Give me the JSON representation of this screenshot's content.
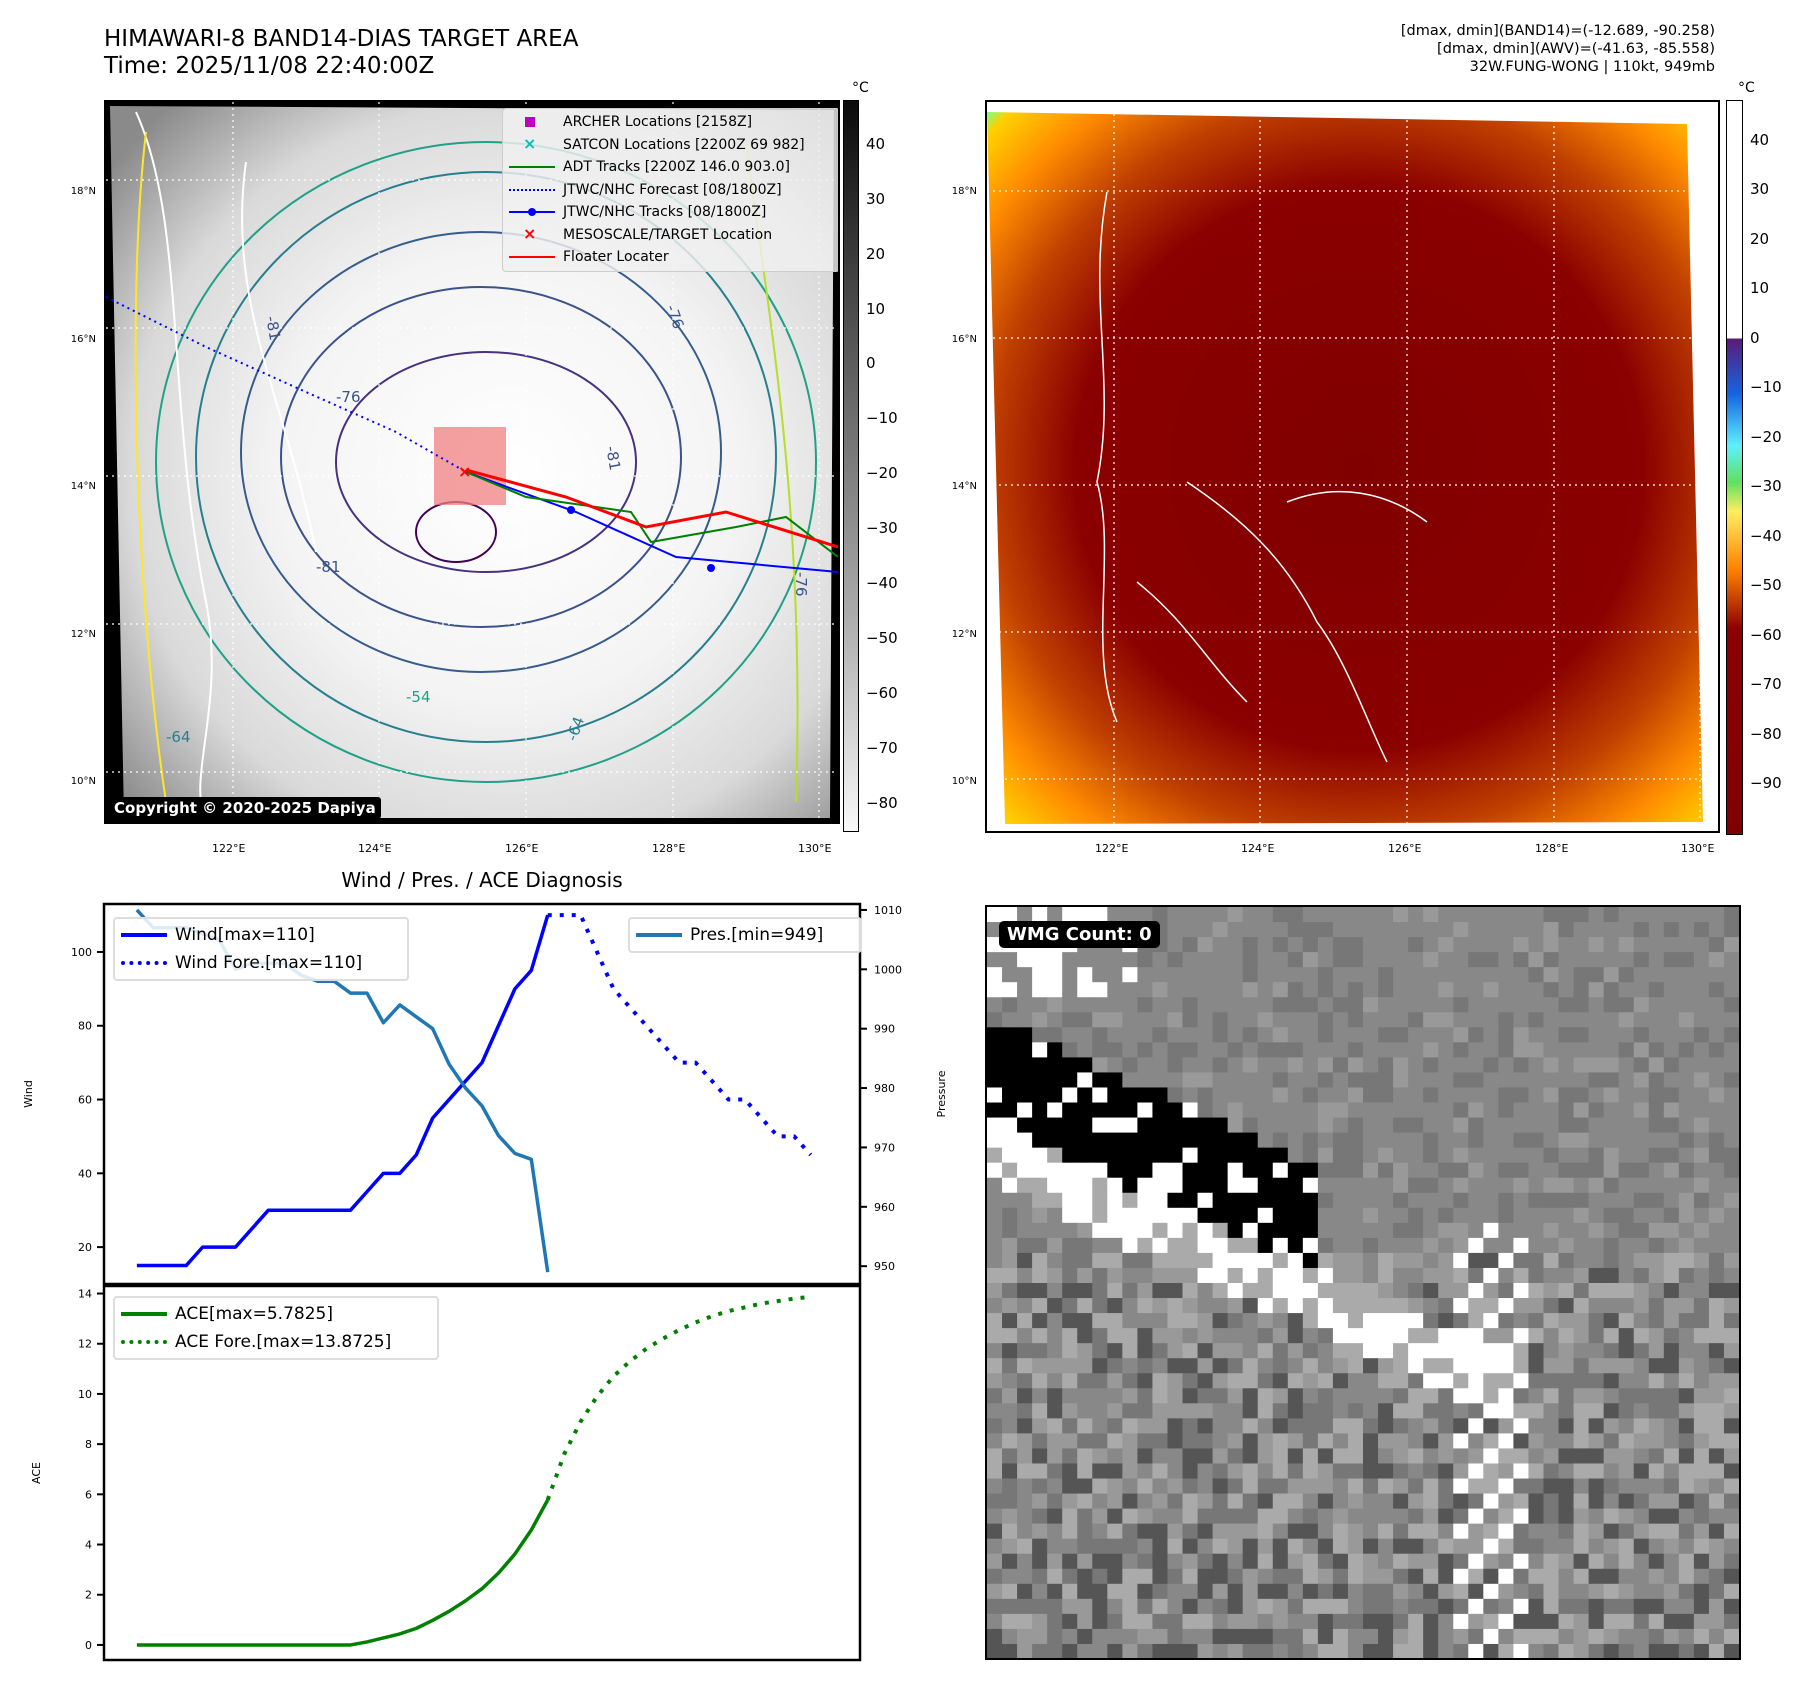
{
  "header": {
    "title_line1": "HIMAWARI-8 BAND14-DIAS TARGET AREA",
    "title_line2": "Time: 2025/11/08 22:40:00Z",
    "info_line1": "[dmax, dmin](BAND14)=(-12.689, -90.258)",
    "info_line2": "[dmax, dmin](AWV)=(-41.63, -85.558)",
    "info_line3": "32W.FUNG-WONG | 110kt, 949mb"
  },
  "map_left": {
    "lat_labels": [
      "18°N",
      "16°N",
      "14°N",
      "12°N",
      "10°N"
    ],
    "lon_labels": [
      "122°E",
      "124°E",
      "126°E",
      "128°E",
      "130°E"
    ],
    "copyright": "Copyright © 2020-2025 Dapiya",
    "contour_labels": [
      "-76",
      "-81",
      "-81",
      "-76",
      "-81",
      "-64",
      "-64",
      "-76",
      "-54"
    ],
    "colorbar": {
      "unit": "°C",
      "ticks": [
        "40",
        "30",
        "20",
        "10",
        "0",
        "−10",
        "−20",
        "−30",
        "−40",
        "−50",
        "−60",
        "−70",
        "−80"
      ],
      "range": [
        -85,
        48
      ]
    },
    "legend": [
      {
        "label": "ARCHER Locations [2158Z]",
        "symbol": "square",
        "color": "#bf00bf"
      },
      {
        "label": "SATCON Locations [2200Z 69 982]",
        "symbol": "x",
        "color": "#00bfbf"
      },
      {
        "label": "ADT Tracks [2200Z 146.0 903.0]",
        "symbol": "line",
        "color": "#008000"
      },
      {
        "label": "JTWC/NHC Forecast [08/1800Z]",
        "symbol": "dotted",
        "color": "#0000ff"
      },
      {
        "label": "JTWC/NHC Tracks [08/1800Z]",
        "symbol": "line-dot",
        "color": "#0000ff"
      },
      {
        "label": "MESOSCALE/TARGET Location",
        "symbol": "x",
        "color": "#ff0000"
      },
      {
        "label": "Floater Locater",
        "symbol": "line",
        "color": "#ff0000"
      }
    ]
  },
  "map_right": {
    "lat_labels": [
      "18°N",
      "16°N",
      "14°N",
      "12°N",
      "10°N"
    ],
    "lon_labels": [
      "122°E",
      "124°E",
      "126°E",
      "128°E",
      "130°E"
    ],
    "colorbar": {
      "unit": "°C",
      "ticks": [
        "40",
        "30",
        "20",
        "10",
        "0",
        "−10",
        "−20",
        "−30",
        "−40",
        "−50",
        "−60",
        "−70",
        "−80",
        "−90"
      ],
      "range": [
        -100,
        48
      ]
    }
  },
  "wmg_panel": {
    "badge": "WMG Count: 0"
  },
  "chart_data": [
    {
      "type": "line",
      "title": "Wind / Pres. / ACE Diagnosis",
      "ylabel": "Wind",
      "ylabel_right": "Pressure",
      "ylim": [
        10,
        113
      ],
      "ylim_right": [
        947,
        1011
      ],
      "yticks": [
        20,
        40,
        60,
        80,
        100
      ],
      "yticks_right": [
        950,
        960,
        970,
        980,
        990,
        1000,
        1010
      ],
      "xlim": [
        -2,
        44
      ],
      "grid": false,
      "legend_left": [
        "Wind[max=110]",
        "Wind Fore.[max=110]"
      ],
      "legend_right": [
        "Pres.[min=949]"
      ],
      "series": [
        {
          "name": "Wind[max=110]",
          "style": "solid",
          "color": "#0000ff",
          "axis": "left",
          "x": [
            0,
            1,
            2,
            3,
            4,
            5,
            6,
            7,
            8,
            9,
            10,
            11,
            12,
            13,
            14,
            15,
            16,
            17,
            18,
            19,
            20,
            21,
            22,
            23,
            24,
            25
          ],
          "values": [
            15,
            15,
            15,
            15,
            20,
            20,
            20,
            25,
            30,
            30,
            30,
            30,
            30,
            30,
            35,
            40,
            40,
            45,
            55,
            60,
            65,
            70,
            80,
            90,
            95,
            110
          ]
        },
        {
          "name": "Wind Fore.[max=110]",
          "style": "dotted",
          "color": "#0000ff",
          "axis": "left",
          "x": [
            25,
            26,
            27,
            28,
            29,
            30,
            31,
            32,
            33,
            34,
            35,
            36,
            37,
            38,
            39,
            40,
            41
          ],
          "values": [
            110,
            110,
            110,
            100,
            90,
            85,
            80,
            75,
            70,
            70,
            65,
            60,
            60,
            55,
            50,
            50,
            45
          ]
        },
        {
          "name": "Pres.[min=949]",
          "style": "solid",
          "color": "#1f77b4",
          "axis": "right",
          "x": [
            0,
            1,
            2,
            3,
            4,
            5,
            6,
            7,
            8,
            9,
            10,
            11,
            12,
            13,
            14,
            15,
            16,
            17,
            18,
            19,
            20,
            21,
            22,
            23,
            24,
            25
          ],
          "values": [
            1010,
            1007,
            1007,
            1007,
            1006,
            1005,
            1000,
            1001,
            1001,
            1001,
            999,
            998,
            998,
            996,
            996,
            991,
            994,
            992,
            990,
            984,
            980,
            977,
            972,
            969,
            968,
            949
          ]
        }
      ]
    },
    {
      "type": "line",
      "title": "",
      "ylabel": "ACE",
      "ylim": [
        -0.6,
        14.3
      ],
      "yticks": [
        0,
        2,
        4,
        6,
        8,
        10,
        12,
        14
      ],
      "xlim": [
        -2,
        44
      ],
      "grid": false,
      "legend": [
        "ACE[max=5.7825]",
        "ACE Fore.[max=13.8725]"
      ],
      "series": [
        {
          "name": "ACE[max=5.7825]",
          "style": "solid",
          "color": "#008000",
          "x": [
            0,
            1,
            2,
            3,
            4,
            5,
            6,
            7,
            8,
            9,
            10,
            11,
            12,
            13,
            14,
            15,
            16,
            17,
            18,
            19,
            20,
            21,
            22,
            23,
            24,
            25
          ],
          "values": [
            0,
            0,
            0,
            0,
            0,
            0,
            0,
            0,
            0,
            0,
            0,
            0,
            0,
            0,
            0.12,
            0.28,
            0.44,
            0.66,
            0.98,
            1.34,
            1.76,
            2.24,
            2.86,
            3.62,
            4.58,
            5.78
          ]
        },
        {
          "name": "ACE Fore.[max=13.8725]",
          "style": "dotted",
          "color": "#008000",
          "x": [
            25,
            26,
            27,
            28,
            29,
            30,
            31,
            32,
            33,
            34,
            35,
            36,
            37,
            38,
            39,
            40,
            41
          ],
          "values": [
            5.78,
            7.6,
            8.9,
            9.9,
            10.7,
            11.3,
            11.8,
            12.2,
            12.55,
            12.85,
            13.1,
            13.3,
            13.45,
            13.6,
            13.7,
            13.8,
            13.87
          ]
        }
      ]
    }
  ]
}
